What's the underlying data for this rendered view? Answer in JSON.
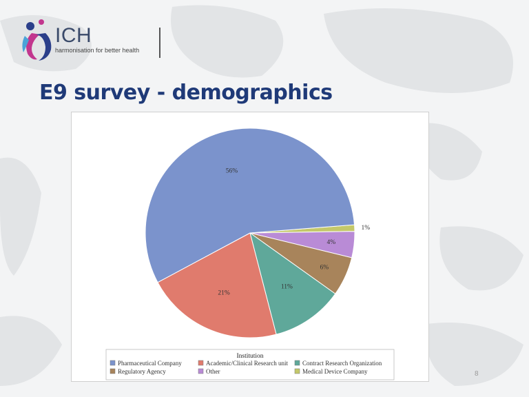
{
  "logo": {
    "name": "ICH",
    "tagline": "harmonisation for better health"
  },
  "slide": {
    "title": "E9 survey - demographics",
    "page_number": "8"
  },
  "colors": {
    "title": "#1f3a78",
    "pharma": "#7b93cc",
    "academic": "#e07b6d",
    "cro": "#5fa89a",
    "regulatory": "#a8845b",
    "other": "#b98bd6",
    "device": "#c4c86a"
  },
  "chart_data": {
    "type": "pie",
    "legend_title": "Institution",
    "legend_position": "bottom",
    "slices": [
      {
        "label": "Pharmaceutical Company",
        "value": 56,
        "display": "56%",
        "color": "#7b93cc"
      },
      {
        "label": "Academic/Clinical Research unit",
        "value": 21,
        "display": "21%",
        "color": "#e07b6d"
      },
      {
        "label": "Contract Research Organization",
        "value": 11,
        "display": "11%",
        "color": "#5fa89a"
      },
      {
        "label": "Regulatory Agency",
        "value": 6,
        "display": "6%",
        "color": "#a8845b"
      },
      {
        "label": "Other",
        "value": 4,
        "display": "4%",
        "color": "#b98bd6"
      },
      {
        "label": "Medical Device Company",
        "value": 1,
        "display": "1%",
        "color": "#c4c86a"
      }
    ]
  }
}
